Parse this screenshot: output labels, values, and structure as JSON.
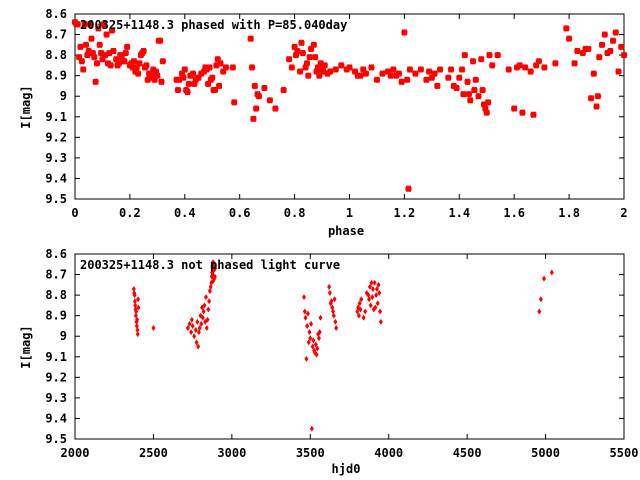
{
  "colors": {
    "points": "#ff0000",
    "axes": "#000000",
    "background": "#ffffff"
  },
  "chart_data": [
    {
      "type": "scatter",
      "title": "200325+1148.3 phased with P=85.040day",
      "xlabel": "phase",
      "ylabel": "I[mag]",
      "xlim": [
        0,
        2
      ],
      "ylim": [
        8.6,
        9.5
      ],
      "y_inverted": true,
      "grid": false,
      "legend": "none",
      "marker": "filled-square",
      "xticks": [
        0,
        0.2,
        0.4,
        0.6,
        0.8,
        1,
        1.2,
        1.4,
        1.6,
        1.8,
        2
      ],
      "xtick_labels": [
        "0",
        "0.2",
        "0.4",
        "0.6",
        "0.8",
        "1",
        "1.2",
        "1.4",
        "1.6",
        "1.8",
        "2"
      ],
      "yticks": [
        8.6,
        8.7,
        8.8,
        8.9,
        9,
        9.1,
        9.2,
        9.3,
        9.4,
        9.5
      ],
      "ytick_labels": [
        "8.6",
        "8.7",
        "8.8",
        "8.9",
        "9",
        "9.1",
        "9.2",
        "9.3",
        "9.4",
        "9.5"
      ],
      "points": [
        [
          0.0,
          8.64
        ],
        [
          0.005,
          8.65
        ],
        [
          0.01,
          8.65
        ],
        [
          0.015,
          8.81
        ],
        [
          0.02,
          8.76
        ],
        [
          0.025,
          8.83
        ],
        [
          0.03,
          8.87
        ],
        [
          0.035,
          8.65
        ],
        [
          0.04,
          8.75
        ],
        [
          0.045,
          8.8
        ],
        [
          0.05,
          8.78
        ],
        [
          0.055,
          8.65
        ],
        [
          0.06,
          8.72
        ],
        [
          0.065,
          8.79
        ],
        [
          0.07,
          8.81
        ],
        [
          0.075,
          8.93
        ],
        [
          0.08,
          8.84
        ],
        [
          0.085,
          8.67
        ],
        [
          0.09,
          8.75
        ],
        [
          0.095,
          8.79
        ],
        [
          0.1,
          8.82
        ],
        [
          0.105,
          8.65
        ],
        [
          0.11,
          8.8
        ],
        [
          0.115,
          8.7
        ],
        [
          0.12,
          8.84
        ],
        [
          0.125,
          8.79
        ],
        [
          0.13,
          8.85
        ],
        [
          0.135,
          8.68
        ],
        [
          0.14,
          8.78
        ],
        [
          0.15,
          8.82
        ],
        [
          0.155,
          8.85
        ],
        [
          0.16,
          8.84
        ],
        [
          0.165,
          8.8
        ],
        [
          0.17,
          8.81
        ],
        [
          0.175,
          8.83
        ],
        [
          0.18,
          8.83
        ],
        [
          0.185,
          8.79
        ],
        [
          0.19,
          8.76
        ],
        [
          0.2,
          8.85
        ],
        [
          0.205,
          8.84
        ],
        [
          0.21,
          8.86
        ],
        [
          0.215,
          8.83
        ],
        [
          0.22,
          8.88
        ],
        [
          0.225,
          8.86
        ],
        [
          0.23,
          8.89
        ],
        [
          0.235,
          8.84
        ],
        [
          0.24,
          8.8
        ],
        [
          0.245,
          8.79
        ],
        [
          0.25,
          8.78
        ],
        [
          0.255,
          8.86
        ],
        [
          0.26,
          8.85
        ],
        [
          0.265,
          8.92
        ],
        [
          0.27,
          8.89
        ],
        [
          0.275,
          8.91
        ],
        [
          0.28,
          8.9
        ],
        [
          0.285,
          8.87
        ],
        [
          0.29,
          8.92
        ],
        [
          0.295,
          8.88
        ],
        [
          0.3,
          8.9
        ],
        [
          0.305,
          8.73
        ],
        [
          0.31,
          8.73
        ],
        [
          0.315,
          8.93
        ],
        [
          0.32,
          8.83
        ],
        [
          0.37,
          8.92
        ],
        [
          0.375,
          8.97
        ],
        [
          0.38,
          8.92
        ],
        [
          0.39,
          8.89
        ],
        [
          0.395,
          8.91
        ],
        [
          0.4,
          8.87
        ],
        [
          0.405,
          8.97
        ],
        [
          0.41,
          8.98
        ],
        [
          0.415,
          8.94
        ],
        [
          0.42,
          8.9
        ],
        [
          0.43,
          8.89
        ],
        [
          0.435,
          8.94
        ],
        [
          0.44,
          8.92
        ],
        [
          0.45,
          8.91
        ],
        [
          0.46,
          8.89
        ],
        [
          0.47,
          8.88
        ],
        [
          0.475,
          8.86
        ],
        [
          0.48,
          8.87
        ],
        [
          0.485,
          8.94
        ],
        [
          0.49,
          8.86
        ],
        [
          0.495,
          8.92
        ],
        [
          0.5,
          8.91
        ],
        [
          0.505,
          8.97
        ],
        [
          0.51,
          8.97
        ],
        [
          0.515,
          8.85
        ],
        [
          0.52,
          8.82
        ],
        [
          0.525,
          8.95
        ],
        [
          0.53,
          8.84
        ],
        [
          0.54,
          8.88
        ],
        [
          0.55,
          8.86
        ],
        [
          0.575,
          8.86
        ],
        [
          0.58,
          9.03
        ],
        [
          0.64,
          8.72
        ],
        [
          0.645,
          8.86
        ],
        [
          0.65,
          9.11
        ],
        [
          0.655,
          8.95
        ],
        [
          0.66,
          9.06
        ],
        [
          0.665,
          8.99
        ],
        [
          0.67,
          9.0
        ],
        [
          0.69,
          8.96
        ],
        [
          0.71,
          9.02
        ],
        [
          0.73,
          9.06
        ],
        [
          0.76,
          8.97
        ],
        [
          0.78,
          8.82
        ],
        [
          0.79,
          8.86
        ],
        [
          0.8,
          8.76
        ],
        [
          0.805,
          8.8
        ],
        [
          0.81,
          8.78
        ],
        [
          0.82,
          8.88
        ],
        [
          0.825,
          8.74
        ],
        [
          0.83,
          8.79
        ],
        [
          0.84,
          8.86
        ],
        [
          0.845,
          8.84
        ],
        [
          0.85,
          8.9
        ],
        [
          0.855,
          8.81
        ],
        [
          0.86,
          8.77
        ],
        [
          0.87,
          8.75
        ],
        [
          0.875,
          8.81
        ],
        [
          0.88,
          8.88
        ],
        [
          0.885,
          8.86
        ],
        [
          0.89,
          8.9
        ],
        [
          0.895,
          8.84
        ],
        [
          0.9,
          8.87
        ],
        [
          0.905,
          8.88
        ],
        [
          0.91,
          8.85
        ],
        [
          0.92,
          8.89
        ],
        [
          0.93,
          8.88
        ],
        [
          0.95,
          8.87
        ],
        [
          0.97,
          8.85
        ],
        [
          0.99,
          8.87
        ],
        [
          1.0,
          8.86
        ],
        [
          1.02,
          8.88
        ],
        [
          1.03,
          8.9
        ],
        [
          1.04,
          8.9
        ],
        [
          1.05,
          8.87
        ],
        [
          1.06,
          8.89
        ],
        [
          1.08,
          8.86
        ],
        [
          1.1,
          8.92
        ],
        [
          1.12,
          8.89
        ],
        [
          1.14,
          8.88
        ],
        [
          1.15,
          8.9
        ],
        [
          1.16,
          8.87
        ],
        [
          1.17,
          8.9
        ],
        [
          1.18,
          8.89
        ],
        [
          1.19,
          8.93
        ],
        [
          1.2,
          8.69
        ],
        [
          1.21,
          8.92
        ],
        [
          1.215,
          9.45
        ],
        [
          1.22,
          8.87
        ],
        [
          1.24,
          8.89
        ],
        [
          1.26,
          8.87
        ],
        [
          1.28,
          8.92
        ],
        [
          1.29,
          8.88
        ],
        [
          1.3,
          8.91
        ],
        [
          1.31,
          8.89
        ],
        [
          1.32,
          8.95
        ],
        [
          1.33,
          8.87
        ],
        [
          1.36,
          8.91
        ],
        [
          1.37,
          8.87
        ],
        [
          1.38,
          8.95
        ],
        [
          1.39,
          8.96
        ],
        [
          1.4,
          8.91
        ],
        [
          1.41,
          8.87
        ],
        [
          1.415,
          8.99
        ],
        [
          1.42,
          8.8
        ],
        [
          1.43,
          8.93
        ],
        [
          1.435,
          8.99
        ],
        [
          1.44,
          9.02
        ],
        [
          1.45,
          8.83
        ],
        [
          1.455,
          8.97
        ],
        [
          1.46,
          8.92
        ],
        [
          1.47,
          9.0
        ],
        [
          1.48,
          8.82
        ],
        [
          1.485,
          8.97
        ],
        [
          1.49,
          9.04
        ],
        [
          1.495,
          9.06
        ],
        [
          1.5,
          9.08
        ],
        [
          1.505,
          9.03
        ],
        [
          1.51,
          8.8
        ],
        [
          1.52,
          8.85
        ],
        [
          1.54,
          8.8
        ],
        [
          1.58,
          8.87
        ],
        [
          1.6,
          9.06
        ],
        [
          1.61,
          8.86
        ],
        [
          1.62,
          8.85
        ],
        [
          1.63,
          9.08
        ],
        [
          1.64,
          8.86
        ],
        [
          1.66,
          8.88
        ],
        [
          1.67,
          9.09
        ],
        [
          1.68,
          8.85
        ],
        [
          1.69,
          8.83
        ],
        [
          1.71,
          8.86
        ],
        [
          1.75,
          8.84
        ],
        [
          1.79,
          8.67
        ],
        [
          1.8,
          8.72
        ],
        [
          1.82,
          8.84
        ],
        [
          1.83,
          8.78
        ],
        [
          1.85,
          8.79
        ],
        [
          1.86,
          8.77
        ],
        [
          1.87,
          8.77
        ],
        [
          1.88,
          9.01
        ],
        [
          1.89,
          8.89
        ],
        [
          1.9,
          9.05
        ],
        [
          1.905,
          9.0
        ],
        [
          1.91,
          8.81
        ],
        [
          1.92,
          8.75
        ],
        [
          1.93,
          8.7
        ],
        [
          1.94,
          8.79
        ],
        [
          1.95,
          8.78
        ],
        [
          1.96,
          8.73
        ],
        [
          1.97,
          8.69
        ],
        [
          1.98,
          8.88
        ],
        [
          1.99,
          8.76
        ],
        [
          2.0,
          8.8
        ]
      ]
    },
    {
      "type": "scatter",
      "title": "200325+1148.3 not phased light curve",
      "xlabel": "hjd0",
      "ylabel": "I[mag]",
      "xlim": [
        2000,
        5500
      ],
      "ylim": [
        8.6,
        9.5
      ],
      "y_inverted": true,
      "grid": false,
      "legend": "none",
      "marker": "small-diamond",
      "xticks": [
        2000,
        2500,
        3000,
        3500,
        4000,
        4500,
        5000,
        5500
      ],
      "xtick_labels": [
        "2000",
        "2500",
        "3000",
        "3500",
        "4000",
        "4500",
        "5000",
        "5500"
      ],
      "yticks": [
        8.6,
        8.7,
        8.8,
        8.9,
        9,
        9.1,
        9.2,
        9.3,
        9.4,
        9.5
      ],
      "ytick_labels": [
        "8.6",
        "8.7",
        "8.8",
        "8.9",
        "9",
        "9.1",
        "9.2",
        "9.3",
        "9.4",
        "9.5"
      ],
      "points": [
        [
          2375,
          8.77
        ],
        [
          2378,
          8.79
        ],
        [
          2380,
          8.8
        ],
        [
          2382,
          8.83
        ],
        [
          2384,
          8.85
        ],
        [
          2386,
          8.87
        ],
        [
          2388,
          8.9
        ],
        [
          2390,
          8.88
        ],
        [
          2392,
          8.93
        ],
        [
          2394,
          8.95
        ],
        [
          2396,
          8.92
        ],
        [
          2398,
          8.97
        ],
        [
          2400,
          8.99
        ],
        [
          2402,
          8.82
        ],
        [
          2404,
          8.86
        ],
        [
          2500,
          8.96
        ],
        [
          2720,
          8.96
        ],
        [
          2730,
          8.94
        ],
        [
          2740,
          8.98
        ],
        [
          2745,
          8.92
        ],
        [
          2750,
          8.95
        ],
        [
          2760,
          9.0
        ],
        [
          2770,
          8.97
        ],
        [
          2775,
          9.03
        ],
        [
          2780,
          8.93
        ],
        [
          2785,
          9.05
        ],
        [
          2790,
          8.98
        ],
        [
          2795,
          8.96
        ],
        [
          2800,
          8.9
        ],
        [
          2805,
          8.94
        ],
        [
          2810,
          8.86
        ],
        [
          2815,
          8.91
        ],
        [
          2820,
          8.88
        ],
        [
          2825,
          8.85
        ],
        [
          2830,
          8.93
        ],
        [
          2835,
          8.81
        ],
        [
          2840,
          8.96
        ],
        [
          2845,
          8.92
        ],
        [
          2850,
          8.87
        ],
        [
          2855,
          8.83
        ],
        [
          2860,
          8.78
        ],
        [
          2865,
          8.76
        ],
        [
          2870,
          8.74
        ],
        [
          2872,
          8.71
        ],
        [
          2874,
          8.69
        ],
        [
          2876,
          8.66
        ],
        [
          2878,
          8.7
        ],
        [
          2880,
          8.64
        ],
        [
          2882,
          8.73
        ],
        [
          2884,
          8.68
        ],
        [
          2886,
          8.66
        ],
        [
          2888,
          8.72
        ],
        [
          2890,
          8.65
        ],
        [
          2892,
          8.71
        ],
        [
          2894,
          8.67
        ],
        [
          3460,
          8.81
        ],
        [
          3465,
          8.88
        ],
        [
          3470,
          8.91
        ],
        [
          3475,
          9.11
        ],
        [
          3480,
          8.95
        ],
        [
          3485,
          8.89
        ],
        [
          3490,
          9.03
        ],
        [
          3495,
          8.98
        ],
        [
          3500,
          9.01
        ],
        [
          3505,
          8.94
        ],
        [
          3510,
          9.45
        ],
        [
          3515,
          9.05
        ],
        [
          3520,
          9.02
        ],
        [
          3525,
          9.07
        ],
        [
          3530,
          9.08
        ],
        [
          3535,
          9.04
        ],
        [
          3540,
          9.09
        ],
        [
          3545,
          9.06
        ],
        [
          3550,
          8.99
        ],
        [
          3555,
          9.01
        ],
        [
          3560,
          8.98
        ],
        [
          3565,
          8.91
        ],
        [
          3620,
          8.76
        ],
        [
          3625,
          8.79
        ],
        [
          3630,
          8.84
        ],
        [
          3635,
          8.83
        ],
        [
          3640,
          8.86
        ],
        [
          3645,
          8.88
        ],
        [
          3650,
          8.9
        ],
        [
          3655,
          8.82
        ],
        [
          3660,
          8.93
        ],
        [
          3665,
          8.96
        ],
        [
          3800,
          8.88
        ],
        [
          3805,
          8.86
        ],
        [
          3810,
          8.9
        ],
        [
          3815,
          8.84
        ],
        [
          3820,
          8.87
        ],
        [
          3825,
          8.82
        ],
        [
          3840,
          8.91
        ],
        [
          3850,
          8.88
        ],
        [
          3860,
          8.79
        ],
        [
          3870,
          8.8
        ],
        [
          3875,
          8.82
        ],
        [
          3880,
          8.76
        ],
        [
          3885,
          8.85
        ],
        [
          3890,
          8.74
        ],
        [
          3895,
          8.81
        ],
        [
          3900,
          8.77
        ],
        [
          3905,
          8.87
        ],
        [
          3910,
          8.74
        ],
        [
          3915,
          8.86
        ],
        [
          3920,
          8.8
        ],
        [
          3925,
          8.77
        ],
        [
          3930,
          8.84
        ],
        [
          3935,
          8.75
        ],
        [
          3940,
          8.79
        ],
        [
          3945,
          8.88
        ],
        [
          3950,
          8.93
        ],
        [
          4960,
          8.88
        ],
        [
          4970,
          8.82
        ],
        [
          4990,
          8.72
        ],
        [
          5040,
          8.69
        ]
      ]
    }
  ]
}
